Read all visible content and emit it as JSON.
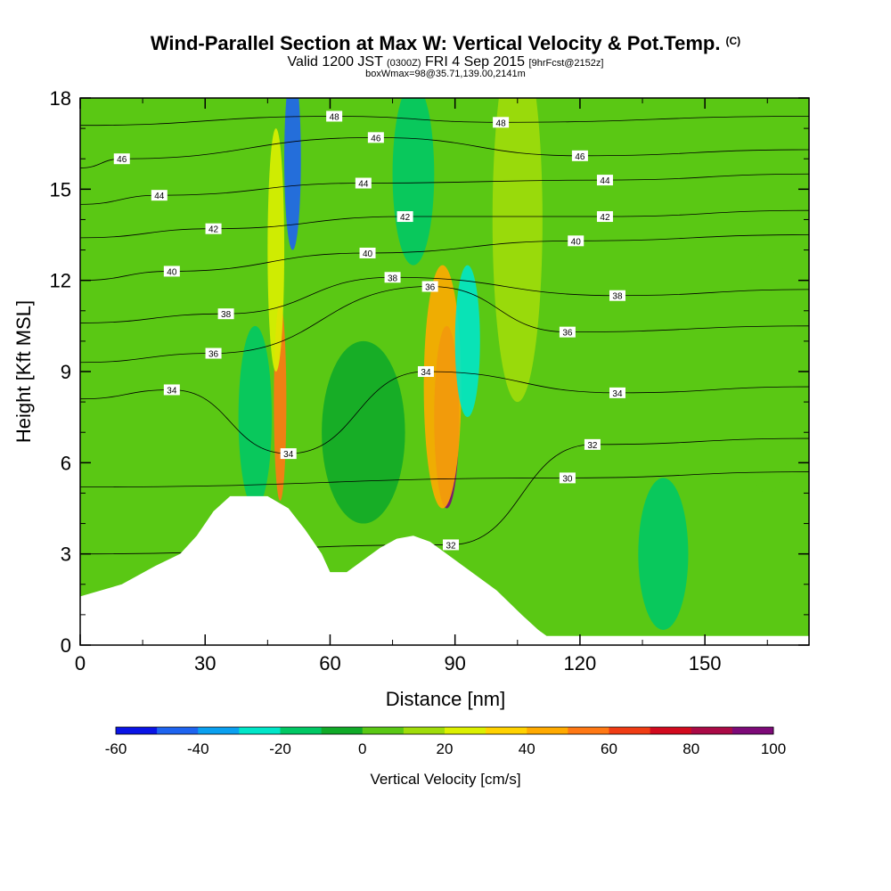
{
  "title": {
    "main": "Wind-Parallel Section at Max W: Vertical Velocity & Pot.Temp.",
    "copyright": "(C)",
    "valid_prefix": "Valid 1200 JST",
    "utc": "(0300Z)",
    "date": "FRI 4 Sep 2015",
    "forecast": "[9hrFcst@2152z]",
    "box": "boxWmax=98@35.71,139.00,2141m"
  },
  "chart_data": {
    "type": "heatmap",
    "xlabel": "Distance [nm]",
    "ylabel": "Height [Kft MSL]",
    "xlim": [
      0,
      175
    ],
    "ylim": [
      0,
      18
    ],
    "x_ticks": [
      "0",
      "30",
      "60",
      "90",
      "120",
      "150"
    ],
    "y_ticks": [
      "0",
      "3",
      "6",
      "9",
      "12",
      "15",
      "18"
    ],
    "colorbar": {
      "label": "Vertical Velocity [cm/s]",
      "ticks": [
        "-60",
        "-40",
        "-20",
        "0",
        "20",
        "40",
        "60",
        "80",
        "100"
      ],
      "levels": [
        -60,
        -50,
        -40,
        -30,
        -20,
        -10,
        0,
        10,
        20,
        30,
        40,
        50,
        60,
        70,
        80,
        90,
        100
      ],
      "colors": [
        "#0a14e6",
        "#1e64f0",
        "#0aa0f0",
        "#00e6c8",
        "#00c864",
        "#10aa28",
        "#5ac814",
        "#a0dc0a",
        "#dcf000",
        "#ffd200",
        "#ffaa00",
        "#ff7814",
        "#f03c14",
        "#d20a1e",
        "#aa0a46",
        "#7d0a78"
      ]
    },
    "terrain_heights_kft": [
      [
        0,
        1.6
      ],
      [
        10,
        2.0
      ],
      [
        18,
        2.6
      ],
      [
        24,
        3.0
      ],
      [
        28,
        3.6
      ],
      [
        32,
        4.4
      ],
      [
        36,
        4.9
      ],
      [
        45,
        4.9
      ],
      [
        50,
        4.5
      ],
      [
        54,
        3.8
      ],
      [
        58,
        3.0
      ],
      [
        60,
        2.4
      ],
      [
        64,
        2.4
      ],
      [
        68,
        2.8
      ],
      [
        72,
        3.2
      ],
      [
        76,
        3.5
      ],
      [
        80,
        3.6
      ],
      [
        84,
        3.4
      ],
      [
        88,
        3.0
      ],
      [
        94,
        2.4
      ],
      [
        100,
        1.8
      ],
      [
        106,
        1.0
      ],
      [
        110,
        0.5
      ],
      [
        112,
        0.3
      ],
      [
        175,
        0.3
      ]
    ],
    "velocity_cells": [
      {
        "x": 48,
        "y": 8.0,
        "w": 3,
        "h": 6.5,
        "value": 55
      },
      {
        "x": 47,
        "y": 13.0,
        "w": 4,
        "h": 8,
        "value": 25
      },
      {
        "x": 51,
        "y": 16.0,
        "w": 4,
        "h": 6,
        "value": -45
      },
      {
        "x": 88,
        "y": 7.5,
        "w": 6,
        "h": 6,
        "value": 95
      },
      {
        "x": 87,
        "y": 8.5,
        "w": 9,
        "h": 8,
        "value": 45
      },
      {
        "x": 93,
        "y": 10.0,
        "w": 6,
        "h": 5,
        "value": -25
      },
      {
        "x": 80,
        "y": 15.5,
        "w": 10,
        "h": 6,
        "value": -20
      },
      {
        "x": 105,
        "y": 14.0,
        "w": 12,
        "h": 12,
        "value": 15
      },
      {
        "x": 42,
        "y": 7.5,
        "w": 8,
        "h": 6,
        "value": -15
      },
      {
        "x": 68,
        "y": 7.0,
        "w": 20,
        "h": 6,
        "value": -10
      },
      {
        "x": 140,
        "y": 3.0,
        "w": 12,
        "h": 5,
        "value": -15
      },
      {
        "x": 165,
        "y": 9.0,
        "w": 14,
        "h": 8,
        "value": 5
      },
      {
        "x": 20,
        "y": 12.0,
        "w": 8,
        "h": 12,
        "value": 5
      }
    ],
    "theta_labels": [
      {
        "text": "48",
        "x": 61,
        "y": 17.4
      },
      {
        "text": "48",
        "x": 101,
        "y": 17.2
      },
      {
        "text": "46",
        "x": 10,
        "y": 16.0
      },
      {
        "text": "46",
        "x": 71,
        "y": 16.7
      },
      {
        "text": "46",
        "x": 120,
        "y": 16.1
      },
      {
        "text": "44",
        "x": 19,
        "y": 14.8
      },
      {
        "text": "44",
        "x": 68,
        "y": 15.2
      },
      {
        "text": "44",
        "x": 126,
        "y": 15.3
      },
      {
        "text": "42",
        "x": 32,
        "y": 13.7
      },
      {
        "text": "42",
        "x": 78,
        "y": 14.1
      },
      {
        "text": "42",
        "x": 126,
        "y": 14.1
      },
      {
        "text": "40",
        "x": 22,
        "y": 12.3
      },
      {
        "text": "40",
        "x": 69,
        "y": 12.9
      },
      {
        "text": "40",
        "x": 119,
        "y": 13.3
      },
      {
        "text": "38",
        "x": 35,
        "y": 10.9
      },
      {
        "text": "38",
        "x": 75,
        "y": 12.1
      },
      {
        "text": "38",
        "x": 129,
        "y": 11.5
      },
      {
        "text": "36",
        "x": 32,
        "y": 9.6
      },
      {
        "text": "36",
        "x": 84,
        "y": 11.8
      },
      {
        "text": "36",
        "x": 117,
        "y": 10.3
      },
      {
        "text": "34",
        "x": 22,
        "y": 8.4
      },
      {
        "text": "34",
        "x": 83,
        "y": 9.0
      },
      {
        "text": "34",
        "x": 50,
        "y": 6.3
      },
      {
        "text": "34",
        "x": 129,
        "y": 8.3
      },
      {
        "text": "32",
        "x": 123,
        "y": 6.6
      },
      {
        "text": "32",
        "x": 89,
        "y": 3.3
      },
      {
        "text": "30",
        "x": 117,
        "y": 5.5
      }
    ]
  }
}
